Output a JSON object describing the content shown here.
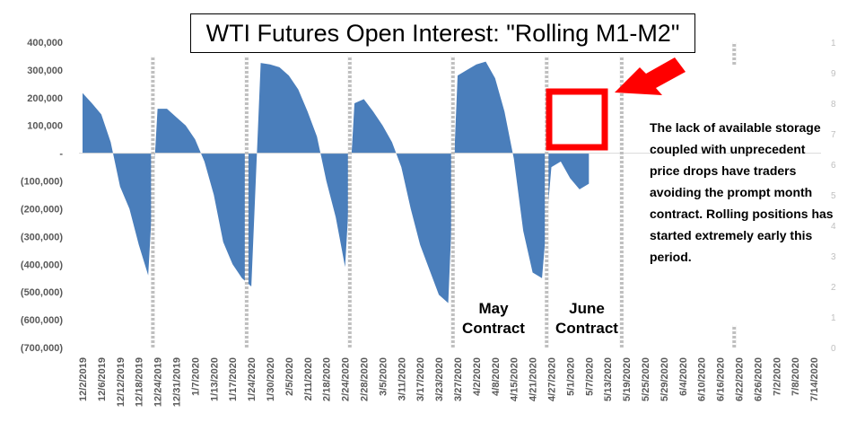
{
  "chart_data": {
    "type": "area",
    "title": "WTI Futures Open Interest: \"Rolling M1-M2\"",
    "categories": [
      "12/2/2019",
      null,
      "12/6/2019",
      null,
      "12/12/2019",
      null,
      "12/18/2019",
      null,
      "12/24/2019",
      null,
      "12/31/2019",
      null,
      "1/7/2020",
      null,
      "1/13/2020",
      null,
      "1/17/2020",
      null,
      "1/24/2020",
      null,
      "1/30/2020",
      null,
      "2/5/2020",
      null,
      "2/11/2020",
      null,
      "2/18/2020",
      null,
      "2/24/2020",
      null,
      "2/28/2020",
      null,
      "3/5/2020",
      null,
      "3/11/2020",
      null,
      "3/17/2020",
      null,
      "3/23/2020",
      null,
      "3/27/2020",
      null,
      "4/2/2020",
      null,
      "4/8/2020",
      null,
      "4/15/2020",
      null,
      "4/21/2020",
      null,
      "4/27/2020",
      null,
      "5/1/2020",
      null,
      "5/7/2020",
      null,
      "5/13/2020",
      null,
      "5/19/2020",
      null,
      "5/25/2020",
      null,
      "5/29/2020",
      null,
      "6/4/2020",
      null,
      "6/10/2020",
      null,
      "6/16/2020",
      null,
      "6/22/2020",
      null,
      "6/26/2020",
      null,
      "7/2/2020",
      null,
      "7/8/2020",
      null,
      "7/14/2020"
    ],
    "values": [
      217000,
      180000,
      140000,
      40000,
      -120000,
      -200000,
      -330000,
      -440000,
      160000,
      160000,
      130000,
      100000,
      50000,
      -30000,
      -150000,
      -320000,
      -400000,
      -450000,
      -480000,
      325000,
      320000,
      310000,
      280000,
      230000,
      150000,
      60000,
      -100000,
      -230000,
      -410000,
      180000,
      195000,
      150000,
      100000,
      40000,
      -50000,
      -200000,
      -330000,
      -420000,
      -510000,
      -540000,
      280000,
      300000,
      320000,
      330000,
      270000,
      150000,
      -20000,
      -280000,
      -430000,
      -450000,
      -50000,
      -30000,
      -90000,
      -130000,
      -110000,
      null,
      null,
      null,
      null,
      null,
      null,
      null,
      null,
      null,
      null,
      null,
      null,
      null,
      null,
      null,
      null,
      null,
      null,
      null,
      null,
      null,
      null,
      null,
      null
    ],
    "color": "#4a7ebb",
    "ylim": [
      -700000,
      400000
    ],
    "yticks": [
      {
        "value": -700000,
        "label": "(700,000)"
      },
      {
        "value": -600000,
        "label": "(600,000)"
      },
      {
        "value": -500000,
        "label": "(500,000)"
      },
      {
        "value": -400000,
        "label": "(400,000)"
      },
      {
        "value": -300000,
        "label": "(300,000)"
      },
      {
        "value": -200000,
        "label": "(200,000)"
      },
      {
        "value": -100000,
        "label": "(100,000)"
      },
      {
        "value": 0,
        "label": "-"
      },
      {
        "value": 100000,
        "label": "100,000"
      },
      {
        "value": 200000,
        "label": "200,000"
      },
      {
        "value": 300000,
        "label": "300,000"
      },
      {
        "value": 400000,
        "label": "400,000"
      }
    ],
    "y2lim": [
      0,
      10
    ],
    "y2ticks": [
      0,
      1,
      2,
      3,
      4,
      5,
      6,
      7,
      8,
      9,
      {
        "value": 10,
        "label": "1"
      }
    ],
    "roll_markers": [
      8,
      18,
      29,
      40,
      50,
      58,
      70
    ],
    "partial_markers": [
      70
    ],
    "annotations": [
      "May\nContract",
      "June\nContract",
      "The lack of available storage coupled with unprecedent price drops have traders avoiding the prompt month contract. Rolling positions has started extremely early this period."
    ]
  }
}
